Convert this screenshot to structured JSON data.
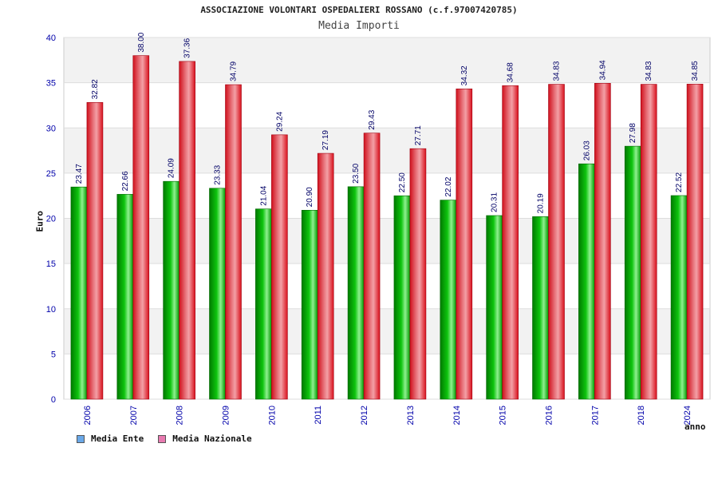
{
  "chart_data": {
    "type": "bar",
    "title": "ASSOCIAZIONE VOLONTARI OSPEDALIERI ROSSANO (c.f.97007420785)",
    "subtitle": "Media Importi",
    "xlabel": "anno",
    "ylabel": "Euro",
    "ylim": [
      0,
      40
    ],
    "yticks": [
      "0",
      "5",
      "10",
      "15",
      "20",
      "25",
      "30",
      "35",
      "40"
    ],
    "categories": [
      "2006",
      "2007",
      "2008",
      "2009",
      "2010",
      "2011",
      "2012",
      "2013",
      "2014",
      "2015",
      "2016",
      "2017",
      "2018",
      "2024"
    ],
    "series": [
      {
        "name": "Media Ente",
        "color": "#00b000",
        "values": [
          23.47,
          22.66,
          24.09,
          23.33,
          21.04,
          20.9,
          23.5,
          22.5,
          22.02,
          20.31,
          20.19,
          26.03,
          27.98,
          22.52
        ],
        "labels": [
          "23.47",
          "22.66",
          "24.09",
          "23.33",
          "21.04",
          "20.90",
          "23.50",
          "22.50",
          "22.02",
          "20.31",
          "20.19",
          "26.03",
          "27.98",
          "22.52"
        ]
      },
      {
        "name": "Media Nazionale",
        "color": "#e8202a",
        "values": [
          32.82,
          38.0,
          37.36,
          34.79,
          29.24,
          27.19,
          29.43,
          27.71,
          34.32,
          34.68,
          34.83,
          34.94,
          34.83,
          34.85
        ],
        "labels": [
          "32.82",
          "38.00",
          "37.36",
          "34.79",
          "29.24",
          "27.19",
          "29.43",
          "27.71",
          "34.32",
          "34.68",
          "34.83",
          "34.94",
          "34.83",
          "34.85"
        ]
      }
    ],
    "legend": [
      {
        "label": "Media Ente",
        "color": "#6aa8e8"
      },
      {
        "label": "Media Nazionale",
        "color": "#e87ab0"
      }
    ],
    "legend_position": "bottom-left",
    "grid": true
  }
}
